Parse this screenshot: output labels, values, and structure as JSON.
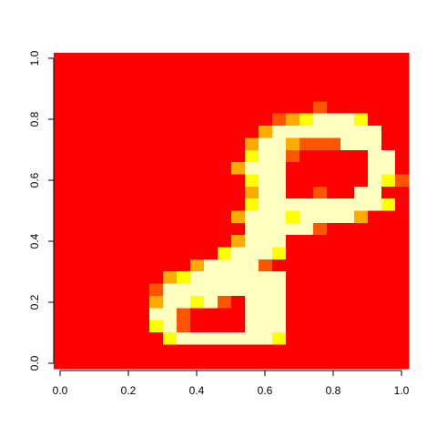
{
  "chart_data": {
    "type": "heatmap",
    "title": "",
    "xlabel": "",
    "ylabel": "",
    "xlim": [
      0,
      1
    ],
    "ylim": [
      0,
      1
    ],
    "x_ticks": [
      {
        "value": 0,
        "label": "0.0"
      },
      {
        "value": 0.2,
        "label": "0.2"
      },
      {
        "value": 0.4,
        "label": "0.4"
      },
      {
        "value": 0.6,
        "label": "0.6"
      },
      {
        "value": 0.8,
        "label": "0.8"
      },
      {
        "value": 1,
        "label": "1.0"
      }
    ],
    "y_ticks": [
      {
        "value": 0,
        "label": "0.0"
      },
      {
        "value": 0.2,
        "label": "0.2"
      },
      {
        "value": 0.4,
        "label": "0.4"
      },
      {
        "value": 0.6,
        "label": "0.6"
      },
      {
        "value": 0.8,
        "label": "0.8"
      },
      {
        "value": 1,
        "label": "1.0"
      }
    ],
    "palette": {
      "name": "heat.colors",
      "colors": [
        "#FF0000",
        "#FF5500",
        "#FFAA00",
        "#FFFF00",
        "#FFFFBF"
      ]
    },
    "grid_size": [
      26,
      26
    ],
    "description_rows": "rows listed from top (y≈1) to bottom (y≈0); each value is a palette index 0–4",
    "grid": [
      "00000000000000000000000000",
      "00000000000000000000000000",
      "00000000000000000000000000",
      "00000000000000000000000000",
      "00000000000000000001000000",
      "00000000000000001234443000",
      "00000000000000024444444400",
      "00000000000000244211144400",
      "00000000000000344100000440",
      "00000000000002444000000440",
      "00000000000000344000000431",
      "00000000000000244001004400",
      "00000000000000344444444430",
      "00000000000002444344442000",
      "00000000000000444441000000",
      "00000000000002444000000000",
      "00000000000034443000000000",
      "00000000002444410000000000",
      "00000000234444444000000000",
      "00000001444444444000000000",
      "00000002443410444000000000",
      "00000004410000444000000000",
      "00000003410000444000000000",
      "00000000344444443000000000",
      "00000000000000000000000000",
      "00000000000000000000000000"
    ]
  }
}
